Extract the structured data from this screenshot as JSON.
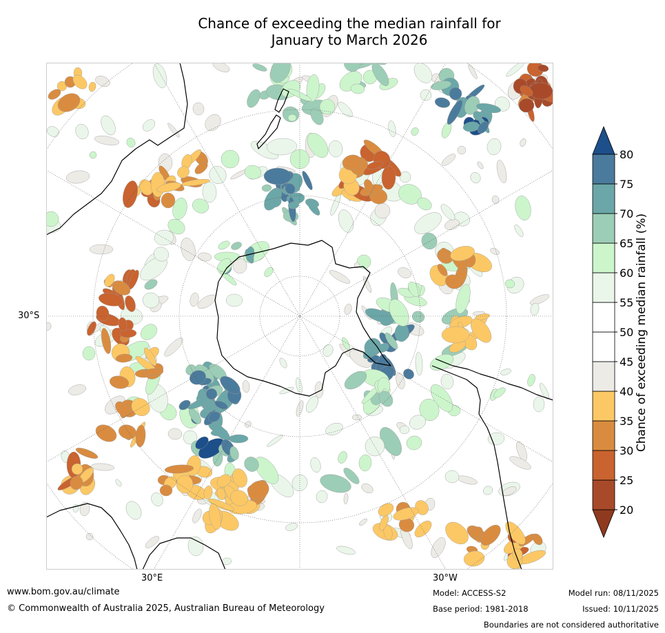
{
  "title": {
    "line1": "Chance of exceeding the median rainfall for",
    "line2": "January to March 2026"
  },
  "map": {
    "projection": "south-polar-stereographic",
    "labels": {
      "lat_30s": "30°S",
      "lon_30e": "30°E",
      "lon_30w": "30°W"
    },
    "palette": {
      "20-25": "#a84a2a",
      "25-30": "#c9632f",
      "30-35": "#d98c40",
      "35-40": "#fcc865",
      "40-45": "#edebe6",
      "45-55": "#ffffff",
      "55-60": "#eaf6ea",
      "60-65": "#ccf5cc",
      "65-70": "#9ccdb6",
      "70-75": "#6ba7a8",
      "75-80": "#4b7b9c",
      "above-80": "#1d4f8a",
      "below-20": "#8f3a1e"
    }
  },
  "colorbar": {
    "title": "Chance of exceeding median rainfall (%)",
    "ticks": [
      "20",
      "25",
      "30",
      "35",
      "40",
      "45",
      "50",
      "55",
      "60",
      "65",
      "70",
      "75",
      "80"
    ],
    "colors": [
      "#a84a2a",
      "#c9632f",
      "#d98c40",
      "#fcc865",
      "#edebe6",
      "#ffffff",
      "#ffffff",
      "#eaf6ea",
      "#ccf5cc",
      "#9ccdb6",
      "#6ba7a8",
      "#4b7b9c"
    ],
    "over_color": "#1d4f8a",
    "under_color": "#8f3a1e"
  },
  "footer": {
    "website": "www.bom.gov.au/climate",
    "copyright": "© Commonwealth of Australia 2025, Australian Bureau of Meteorology",
    "model": "Model: ACCESS-S2",
    "base_period": "Base period: 1981-2018",
    "model_run": "Model run: 08/11/2025",
    "issued": "Issued: 10/11/2025",
    "disclaimer": "Boundaries are not considered authoritative"
  }
}
